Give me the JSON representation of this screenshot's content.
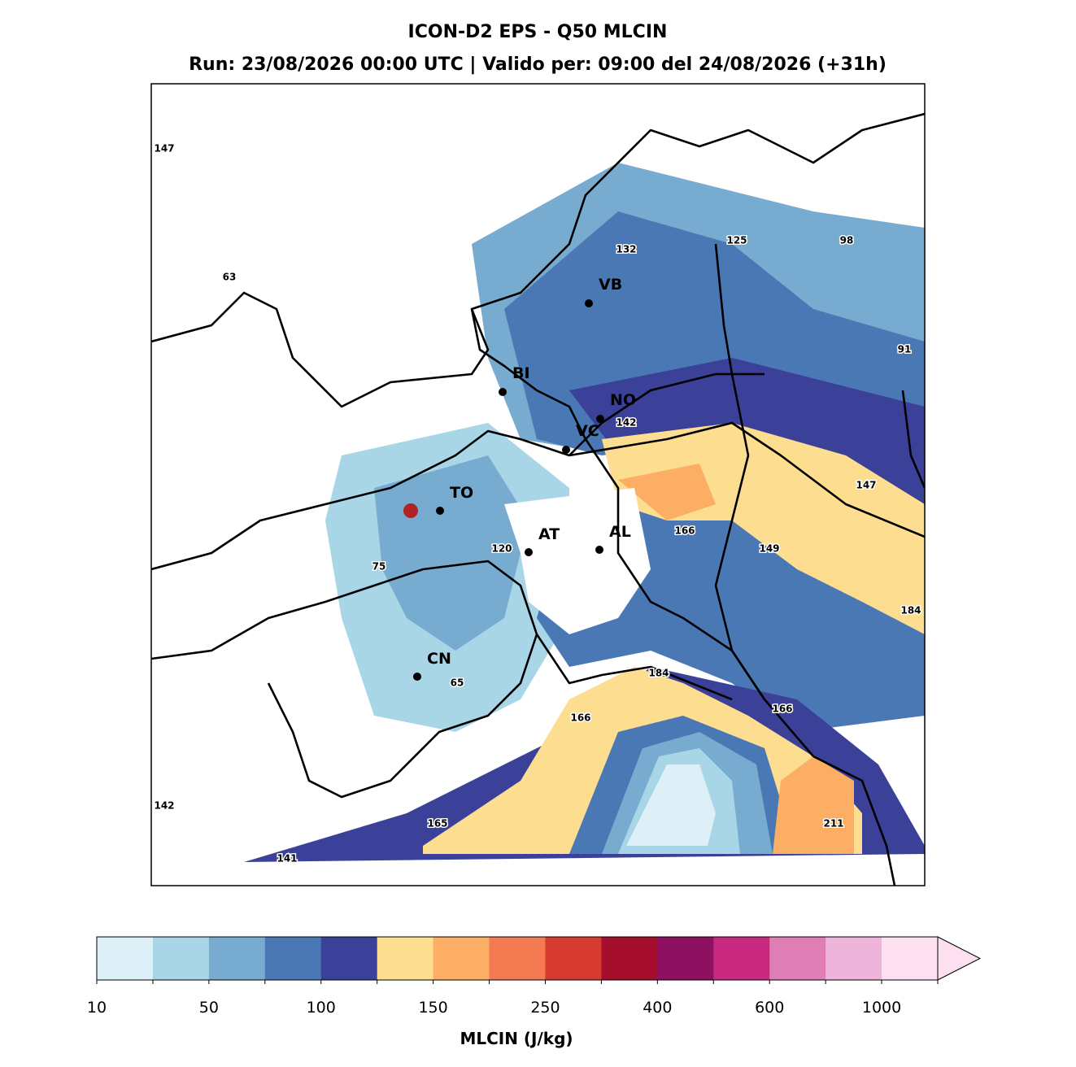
{
  "header": {
    "title": "ICON-D2 EPS - Q50 MLCIN",
    "subtitle": "Run: 23/08/2026 00:00 UTC | Valido per: 09:00 del 24/08/2026 (+31h)"
  },
  "cities": [
    "VB",
    "BI",
    "NO",
    "VC",
    "TO",
    "AT",
    "AL",
    "CN"
  ],
  "contour_labels": [
    147,
    63,
    132,
    125,
    98,
    91,
    142,
    147,
    166,
    149,
    120,
    75,
    184,
    184,
    65,
    166,
    166,
    142,
    165,
    211,
    141
  ],
  "colorbar": {
    "label": "MLCIN (J/kg)",
    "colors": [
      "#ddf0f7",
      "#a8d6e7",
      "#77abd0",
      "#4a78b4",
      "#3b4099",
      "#fddd90",
      "#fbae64",
      "#f37a51",
      "#d73a30",
      "#a50f2d",
      "#8e1060",
      "#c8287e",
      "#de7eb4",
      "#eeb4d9",
      "#fde0ef"
    ],
    "ticks": [
      10,
      50,
      100,
      150,
      250,
      400,
      600,
      1000
    ]
  }
}
